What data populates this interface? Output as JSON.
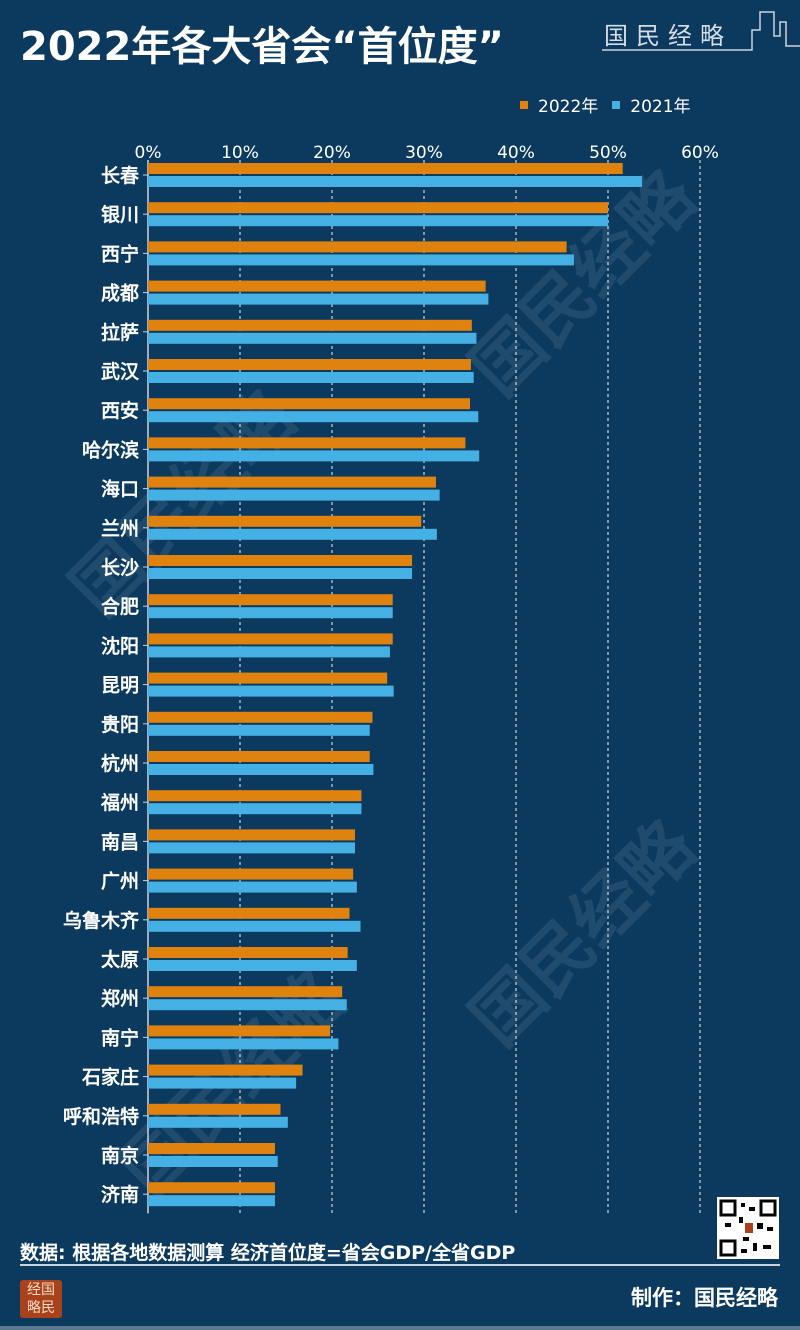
{
  "title": "2022年各大省会“首位度”",
  "brand": "国民经略",
  "legend": [
    {
      "label": "2022年",
      "color": "#e0820e"
    },
    {
      "label": "2021年",
      "color": "#45b0e3"
    }
  ],
  "source": "数据: 根据各地数据测算 经济首位度=省会GDP/全省GDP",
  "credit": "制作：国民经略",
  "seal_text": "经国略民",
  "watermark": "国民经略",
  "chart_data": {
    "type": "bar",
    "orientation": "horizontal",
    "categories": [
      "长春",
      "银川",
      "西宁",
      "成都",
      "拉萨",
      "武汉",
      "西安",
      "哈尔滨",
      "海口",
      "兰州",
      "长沙",
      "合肥",
      "沈阳",
      "昆明",
      "贵阳",
      "杭州",
      "福州",
      "南昌",
      "广州",
      "乌鲁木齐",
      "太原",
      "郑州",
      "南宁",
      "石家庄",
      "呼和浩特",
      "南京",
      "济南"
    ],
    "series": [
      {
        "name": "2022年",
        "color": "#e0820e",
        "values": [
          51.6,
          50.0,
          45.5,
          36.7,
          35.2,
          35.1,
          35.0,
          34.5,
          31.3,
          29.7,
          28.7,
          26.6,
          26.6,
          26.0,
          24.4,
          24.1,
          23.2,
          22.5,
          22.3,
          21.9,
          21.7,
          21.1,
          19.8,
          16.8,
          14.4,
          13.8,
          13.8
        ]
      },
      {
        "name": "2021年",
        "color": "#45b0e3",
        "values": [
          53.7,
          50.0,
          46.3,
          37.0,
          35.7,
          35.4,
          35.9,
          36.0,
          31.7,
          31.4,
          28.7,
          26.6,
          26.3,
          26.7,
          24.1,
          24.5,
          23.2,
          22.5,
          22.7,
          23.1,
          22.7,
          21.6,
          20.7,
          16.1,
          15.2,
          14.1,
          13.8
        ]
      }
    ],
    "xticks": [
      "0%",
      "10%",
      "20%",
      "30%",
      "40%",
      "50%",
      "60%"
    ],
    "xlim": [
      0,
      60
    ],
    "unit": "%",
    "grid": "vertical dashed",
    "legend_position": "top-right"
  }
}
